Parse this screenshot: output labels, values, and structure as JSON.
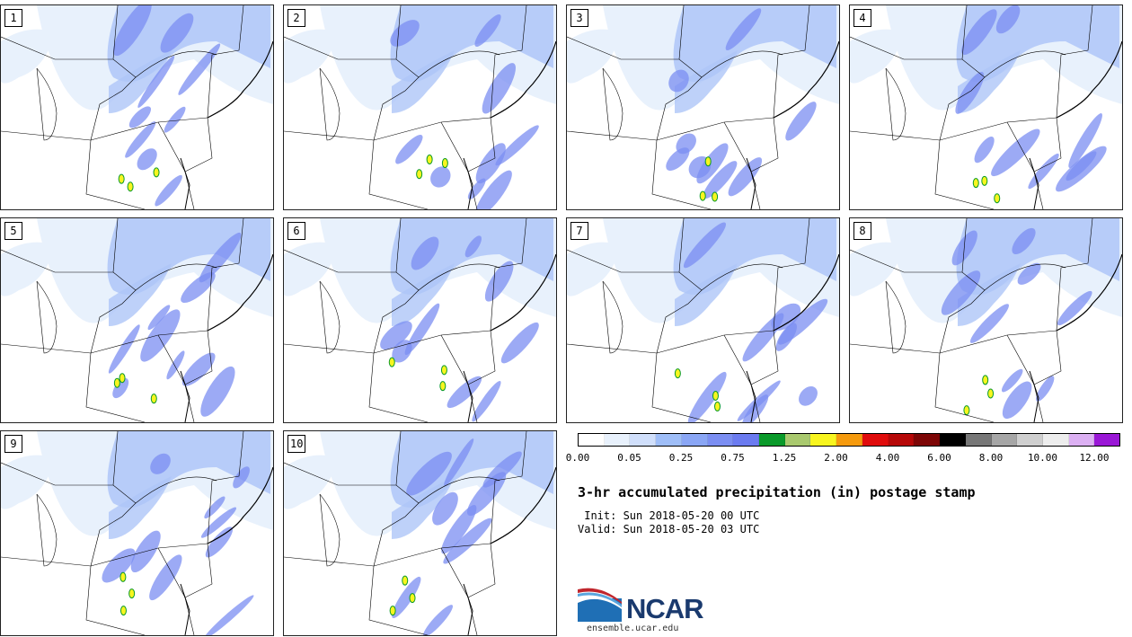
{
  "product": {
    "title": "3-hr accumulated precipitation (in) postage stamp",
    "init_line": " Init: Sun 2018-05-20 00 UTC",
    "valid_line": "Valid: Sun 2018-05-20 03 UTC"
  },
  "members": [
    "1",
    "2",
    "3",
    "4",
    "5",
    "6",
    "7",
    "8",
    "9",
    "10"
  ],
  "colorbar": {
    "colors": [
      "#ffffff",
      "#e8f1fc",
      "#d0dffb",
      "#9fbef8",
      "#8aa6f5",
      "#7b8ef2",
      "#6b7bf0",
      "#0a9a2a",
      "#a9c96e",
      "#f8f51f",
      "#f59a0d",
      "#e00c0c",
      "#b60808",
      "#7d0606",
      "#000000",
      "#777777",
      "#a6a6a6",
      "#cfcfcf",
      "#ededed",
      "#dcb0f3",
      "#9a17d6"
    ],
    "tick_labels": [
      "0.00",
      "0.05",
      "0.25",
      "0.75",
      "1.25",
      "2.00",
      "4.00",
      "6.00",
      "8.00",
      "10.00",
      "12.00"
    ]
  },
  "logo": {
    "wordmark": "NCAR",
    "site": "ensemble.ucar.edu",
    "brand_color": "#1a3a6e"
  },
  "map": {
    "land_color": "#ffffff",
    "light_precip": "#e8f1fc",
    "moderate_precip": "#aec6f8",
    "heavy_precip": "#7b8ef2",
    "border_color": "#000000"
  }
}
